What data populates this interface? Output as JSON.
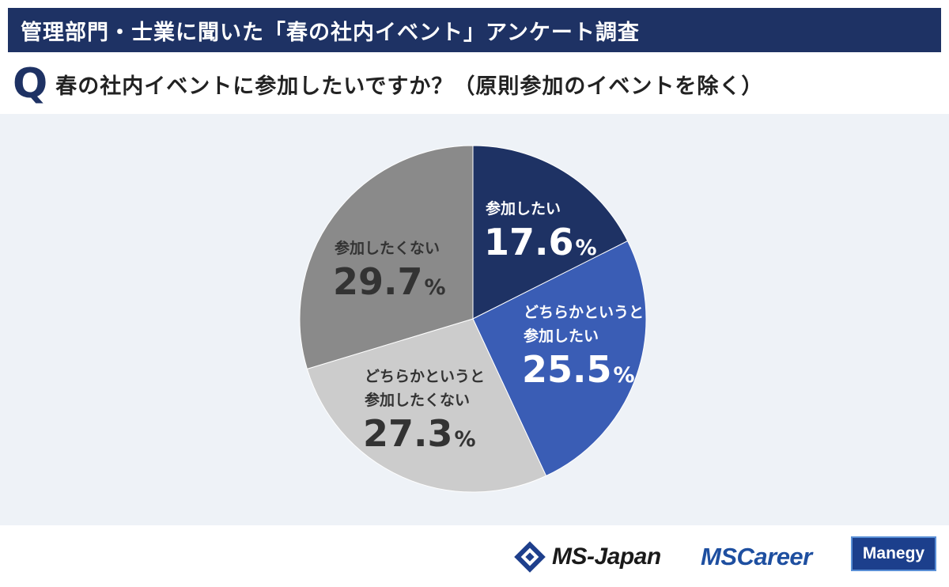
{
  "header": {
    "title": "管理部門・士業に聞いた「春の社内イベント」アンケート調査"
  },
  "question": {
    "mark": "Q",
    "text": "春の社内イベントに参加したいですか？（原則参加のイベントを除く）"
  },
  "chart_data": {
    "type": "pie",
    "start": "12 o'clock, clockwise",
    "slices": [
      {
        "label_lines": [
          "参加したい"
        ],
        "value": 17.6,
        "color": "#1e3264",
        "text_color": "#ffffff"
      },
      {
        "label_lines": [
          "どちらかというと",
          "参加したい"
        ],
        "value": 25.5,
        "color": "#3a5db5",
        "text_color": "#ffffff"
      },
      {
        "label_lines": [
          "どちらかというと",
          "参加したくない"
        ],
        "value": 27.3,
        "color": "#cccccc",
        "text_color": "#333333"
      },
      {
        "label_lines": [
          "参加したくない"
        ],
        "value": 29.7,
        "color": "#8a8a8a",
        "text_color": "#333333"
      }
    ],
    "unit": "%",
    "legend": "none (labels inside slices)"
  },
  "footer": {
    "logos": {
      "ms_japan": "MS-Japan",
      "ms_career": "MSCareer",
      "manegy": "Manegy"
    }
  }
}
